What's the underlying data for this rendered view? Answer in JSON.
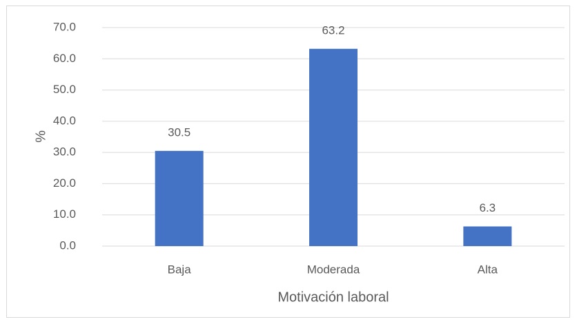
{
  "chart_data": {
    "type": "bar",
    "xlabel": "Motivación laboral",
    "ylabel": "%",
    "categories": [
      "Baja",
      "Moderada",
      "Alta"
    ],
    "values": [
      30.5,
      63.2,
      6.3
    ],
    "color": "#4472c4",
    "ylim": [
      0,
      70
    ],
    "yticks": [
      {
        "value": 0,
        "label": "0.0"
      },
      {
        "value": 10,
        "label": "10.0"
      },
      {
        "value": 20,
        "label": "20.0"
      },
      {
        "value": 30,
        "label": "30.0"
      },
      {
        "value": 40,
        "label": "40.0"
      },
      {
        "value": 50,
        "label": "50.0"
      },
      {
        "value": 60,
        "label": "60.0"
      },
      {
        "value": 70,
        "label": "70.0"
      }
    ],
    "grid": true
  }
}
